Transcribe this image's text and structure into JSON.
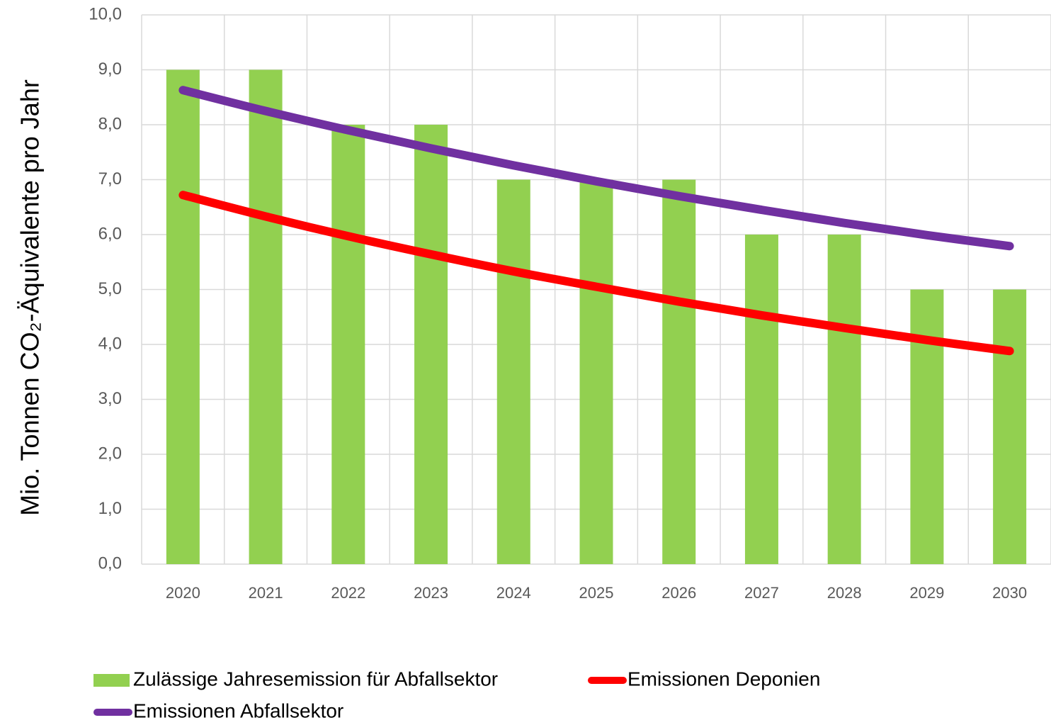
{
  "chart_data": {
    "type": "bar",
    "y_label": "Mio. Tonnen CO₂-Äquivalente pro Jahr",
    "categories": [
      "2020",
      "2021",
      "2022",
      "2023",
      "2024",
      "2025",
      "2026",
      "2027",
      "2028",
      "2029",
      "2030"
    ],
    "series": [
      {
        "name": "Zulässige Jahresemission für Abfallsektor",
        "type": "bar",
        "color": "#92d050",
        "values": [
          9,
          9,
          8,
          8,
          7,
          7,
          7,
          6,
          6,
          5,
          5
        ]
      },
      {
        "name": "Emissionen Deponien",
        "type": "line",
        "color": "#ff0000",
        "values": [
          6.72,
          6.33,
          5.97,
          5.64,
          5.33,
          5.05,
          4.78,
          4.53,
          4.3,
          4.08,
          3.88
        ]
      },
      {
        "name": "Emissionen Abfallsektor",
        "type": "line",
        "color": "#7030a0",
        "values": [
          8.63,
          8.25,
          7.9,
          7.57,
          7.26,
          6.97,
          6.7,
          6.45,
          6.21,
          5.99,
          5.79
        ]
      }
    ],
    "ylim": [
      0,
      10
    ],
    "yticks": [
      {
        "value": 0,
        "label": "0,0"
      },
      {
        "value": 1,
        "label": "1,0"
      },
      {
        "value": 2,
        "label": "2,0"
      },
      {
        "value": 3,
        "label": "3,0"
      },
      {
        "value": 4,
        "label": "4,0"
      },
      {
        "value": 5,
        "label": "5,0"
      },
      {
        "value": 6,
        "label": "6,0"
      },
      {
        "value": 7,
        "label": "7,0"
      },
      {
        "value": 8,
        "label": "8,0"
      },
      {
        "value": 9,
        "label": "9,0"
      },
      {
        "value": 10,
        "label": "10,0"
      }
    ],
    "grid": true
  }
}
